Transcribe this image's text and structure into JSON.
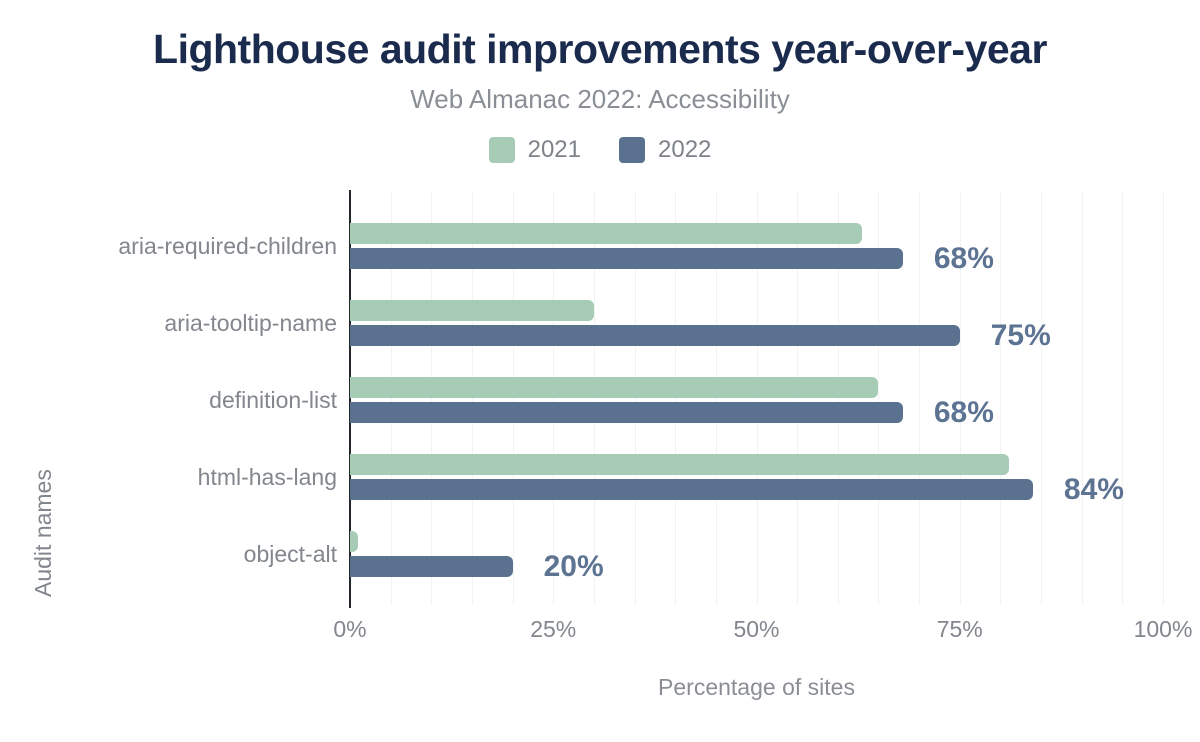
{
  "header": {
    "title": "Lighthouse audit improvements year-over-year",
    "subtitle": "Web Almanac 2022: Accessibility"
  },
  "chart_data": {
    "type": "bar",
    "orientation": "horizontal",
    "title": "Lighthouse audit improvements year-over-year",
    "subtitle": "Web Almanac 2022: Accessibility",
    "xlabel": "Percentage of sites",
    "ylabel": "Audit names",
    "categories": [
      "aria-required-children",
      "aria-tooltip-name",
      "definition-list",
      "html-has-lang",
      "object-alt"
    ],
    "series": [
      {
        "name": "2021",
        "color": "#a7ccb6",
        "values": [
          63,
          30,
          65,
          81,
          1
        ]
      },
      {
        "name": "2022",
        "color": "#5b7190",
        "values": [
          68,
          75,
          68,
          84,
          20
        ]
      }
    ],
    "data_labels": [
      "68%",
      "75%",
      "68%",
      "84%",
      "20%"
    ],
    "x_ticks": [
      {
        "label": "0%",
        "value": 0
      },
      {
        "label": "25%",
        "value": 25
      },
      {
        "label": "50%",
        "value": 50
      },
      {
        "label": "75%",
        "value": 75
      },
      {
        "label": "100%",
        "value": 100
      }
    ],
    "xlim": [
      0,
      100
    ],
    "grid": {
      "minor_step_percent": 5,
      "color": "#f1f2f4",
      "direction": "vertical"
    },
    "legend_position": "top-center",
    "colors": {
      "title": "#1b2b4d",
      "subtitle": "#8a8f96",
      "axis_text": "#82868d",
      "data_label": "#5d7392",
      "axis_line": "#23262b"
    }
  }
}
